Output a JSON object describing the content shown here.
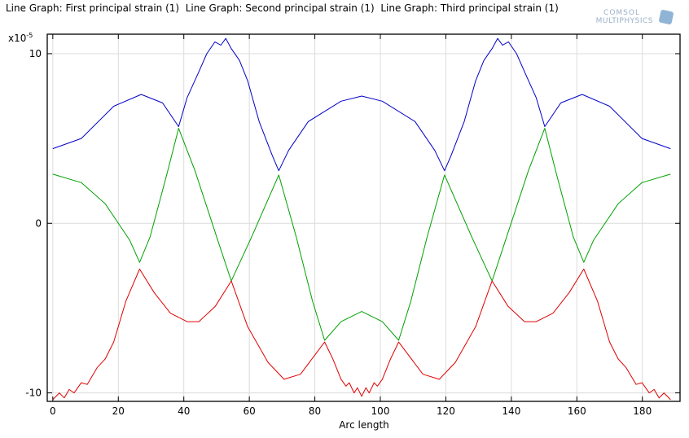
{
  "title": "Line Graph: First principal strain (1)  Line Graph: Second principal strain (1)  Line Graph: Third principal strain (1)",
  "logo": {
    "line1": "COMSOL",
    "line2": "MULTIPHYSICS"
  },
  "chart_data": {
    "type": "line",
    "title": "Line Graph: First principal strain (1)  Line Graph: Second principal strain (1)  Line Graph: Third principal strain (1)",
    "xlabel": "Arc length",
    "ylabel": "",
    "y_multiplier": "x10",
    "y_multiplier_exp": "-5",
    "xlim": [
      -1.7,
      191.5
    ],
    "ylim": [
      -10.5,
      11.15
    ],
    "xticks": [
      0,
      20,
      40,
      60,
      80,
      100,
      120,
      140,
      160,
      180
    ],
    "yticks": [
      -10,
      0,
      10
    ],
    "grid": true,
    "series": [
      {
        "name": "First principal strain (1)",
        "color": "#0000c8",
        "x": [
          0,
          8.7,
          18.6,
          27,
          33.5,
          38.4,
          41,
          44.5,
          47,
          49.5,
          51.3,
          52.8,
          54.5,
          57,
          59.5,
          63,
          67,
          69,
          72,
          78,
          88,
          94.3,
          100.6,
          110.6,
          116.6,
          119.6,
          121.6,
          125.6,
          129.1,
          131.6,
          134.1,
          135.8,
          137.3,
          139.1,
          141.6,
          144.1,
          147.6,
          150.2,
          155.1,
          161.6,
          170,
          179.9,
          188.6
        ],
        "y": [
          4.4,
          5.0,
          6.9,
          7.6,
          7.1,
          5.7,
          7.4,
          8.9,
          10.0,
          10.7,
          10.5,
          10.9,
          10.3,
          9.6,
          8.4,
          6.0,
          4.0,
          3.1,
          4.3,
          6.0,
          7.2,
          7.5,
          7.2,
          6.0,
          4.3,
          3.1,
          4.0,
          6.0,
          8.4,
          9.6,
          10.3,
          10.9,
          10.5,
          10.7,
          10.0,
          8.9,
          7.4,
          5.7,
          7.1,
          7.6,
          6.9,
          5.0,
          4.4
        ]
      },
      {
        "name": "Second principal strain (1)",
        "color": "#00a000",
        "x": [
          0,
          8.7,
          16,
          23.5,
          26.5,
          29.7,
          34.7,
          38.4,
          43.4,
          50.8,
          54.5,
          60.7,
          69,
          74.3,
          79.3,
          83,
          88,
          94.3,
          100.6,
          105.6,
          109.3,
          114.3,
          119.6,
          127.9,
          134.1,
          137.8,
          145.2,
          150.2,
          153.9,
          158.9,
          162.1,
          165.1,
          172.6,
          179.9,
          188.6
        ],
        "y": [
          2.9,
          2.4,
          1.15,
          -1.0,
          -2.3,
          -0.8,
          2.8,
          5.6,
          3.1,
          -1.25,
          -3.4,
          -0.8,
          2.85,
          -0.8,
          -4.6,
          -6.9,
          -5.8,
          -5.2,
          -5.8,
          -6.9,
          -4.6,
          -0.8,
          2.85,
          -0.8,
          -3.4,
          -1.25,
          3.1,
          5.6,
          2.8,
          -0.8,
          -2.3,
          -1.0,
          1.15,
          2.4,
          2.9
        ]
      },
      {
        "name": "Third principal strain (1)",
        "color": "#e00000",
        "x": [
          0,
          2,
          3.5,
          5,
          6.5,
          8.7,
          10.5,
          13.6,
          16,
          18.6,
          22.3,
          26.5,
          31,
          35.9,
          41,
          44.6,
          49.6,
          54.5,
          59.5,
          65.7,
          70.6,
          75.6,
          83,
          85.5,
          88,
          89.5,
          90.5,
          92,
          93,
          94.3,
          95.6,
          96.6,
          98.1,
          99.1,
          100.6,
          103.1,
          105.6,
          113,
          118,
          122.9,
          129.1,
          134.1,
          139,
          144,
          147.6,
          152.7,
          157.6,
          162.1,
          166.3,
          170,
          172.6,
          175,
          178.1,
          179.9,
          182.1,
          183.6,
          185.1,
          186.6,
          188.6
        ],
        "y": [
          -10.4,
          -10.0,
          -10.3,
          -9.8,
          -10.0,
          -9.4,
          -9.5,
          -8.5,
          -8.0,
          -7.0,
          -4.6,
          -2.7,
          -4.1,
          -5.3,
          -5.8,
          -5.8,
          -4.9,
          -3.4,
          -6.1,
          -8.2,
          -9.2,
          -8.9,
          -7.0,
          -8.0,
          -9.2,
          -9.6,
          -9.4,
          -10.0,
          -9.7,
          -10.2,
          -9.7,
          -10.0,
          -9.4,
          -9.6,
          -9.2,
          -8.0,
          -7.0,
          -8.9,
          -9.2,
          -8.2,
          -6.1,
          -3.4,
          -4.9,
          -5.8,
          -5.8,
          -5.3,
          -4.1,
          -2.7,
          -4.6,
          -7.0,
          -8.0,
          -8.5,
          -9.5,
          -9.4,
          -10.0,
          -9.8,
          -10.3,
          -10.0,
          -10.4
        ]
      }
    ]
  }
}
